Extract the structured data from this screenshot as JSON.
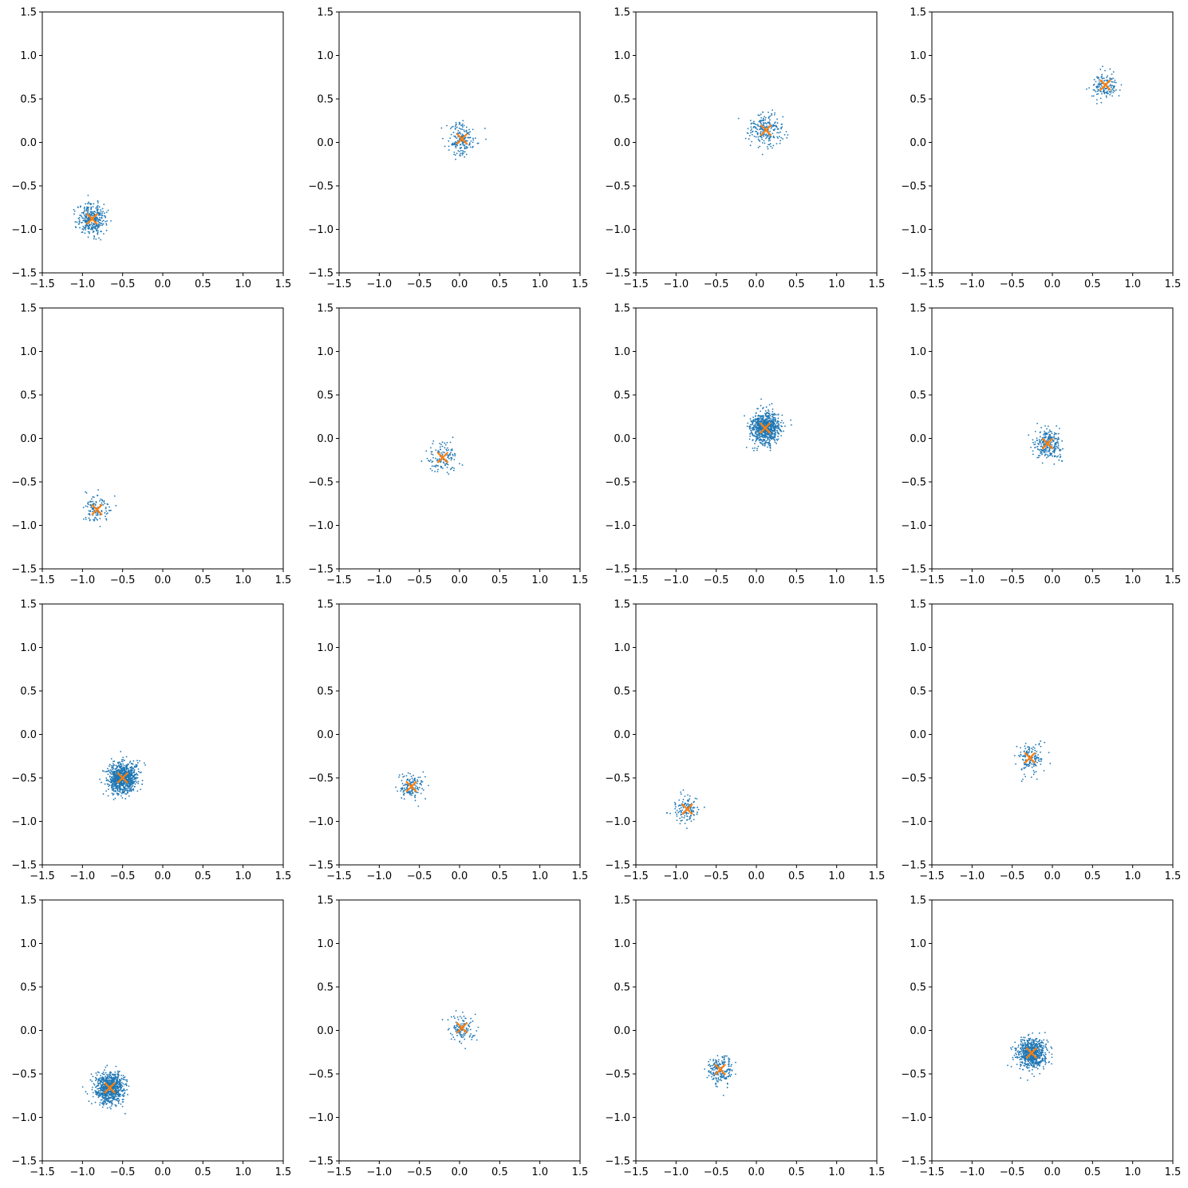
{
  "chart_data": {
    "layout": {
      "rows": 4,
      "cols": 4
    },
    "colors": {
      "scatter": "#1f77b4",
      "center_marker": "#ff7f0e",
      "axes": "#000000"
    },
    "marker_types": {
      "points": "dot",
      "center": "x"
    },
    "shared_axes": {
      "xlim": [
        -1.5,
        1.5
      ],
      "ylim": [
        -1.5,
        1.5
      ],
      "xticks": [
        -1.5,
        -1.0,
        -0.5,
        0.0,
        0.5,
        1.0,
        1.5
      ],
      "yticks": [
        -1.5,
        -1.0,
        -0.5,
        0.0,
        0.5,
        1.0,
        1.5
      ],
      "xtick_labels": [
        "−1.5",
        "−1.0",
        "−0.5",
        "0.0",
        "0.5",
        "1.0",
        "1.5"
      ],
      "ytick_labels": [
        "−1.5",
        "−1.0",
        "−0.5",
        "0.0",
        "0.5",
        "1.0",
        "1.5"
      ],
      "grid": false
    },
    "panels": [
      {
        "type": "scatter",
        "title": "",
        "center": [
          -0.88,
          -0.88
        ],
        "spread": 0.09,
        "n_points": 350
      },
      {
        "type": "scatter",
        "title": "",
        "center": [
          0.03,
          0.04
        ],
        "spread": 0.09,
        "n_points": 180
      },
      {
        "type": "scatter",
        "title": "",
        "center": [
          0.12,
          0.14
        ],
        "spread": 0.1,
        "n_points": 220
      },
      {
        "type": "scatter",
        "title": "",
        "center": [
          0.66,
          0.66
        ],
        "spread": 0.08,
        "n_points": 140
      },
      {
        "type": "scatter",
        "title": "",
        "center": [
          -0.82,
          -0.82
        ],
        "spread": 0.08,
        "n_points": 120
      },
      {
        "type": "scatter",
        "title": "",
        "center": [
          -0.21,
          -0.22
        ],
        "spread": 0.09,
        "n_points": 130
      },
      {
        "type": "scatter",
        "title": "",
        "center": [
          0.11,
          0.12
        ],
        "spread": 0.09,
        "n_points": 800
      },
      {
        "type": "scatter",
        "title": "",
        "center": [
          -0.06,
          -0.06
        ],
        "spread": 0.09,
        "n_points": 260
      },
      {
        "type": "scatter",
        "title": "",
        "center": [
          -0.5,
          -0.5
        ],
        "spread": 0.09,
        "n_points": 900
      },
      {
        "type": "scatter",
        "title": "",
        "center": [
          -0.6,
          -0.6
        ],
        "spread": 0.08,
        "n_points": 130
      },
      {
        "type": "scatter",
        "title": "",
        "center": [
          -0.86,
          -0.86
        ],
        "spread": 0.08,
        "n_points": 130
      },
      {
        "type": "scatter",
        "title": "",
        "center": [
          -0.28,
          -0.27
        ],
        "spread": 0.08,
        "n_points": 150
      },
      {
        "type": "scatter",
        "title": "",
        "center": [
          -0.66,
          -0.66
        ],
        "spread": 0.09,
        "n_points": 800
      },
      {
        "type": "scatter",
        "title": "",
        "center": [
          0.03,
          0.03
        ],
        "spread": 0.08,
        "n_points": 120
      },
      {
        "type": "scatter",
        "title": "",
        "center": [
          -0.45,
          -0.45
        ],
        "spread": 0.08,
        "n_points": 200
      },
      {
        "type": "scatter",
        "title": "",
        "center": [
          -0.26,
          -0.26
        ],
        "spread": 0.09,
        "n_points": 700
      }
    ]
  }
}
